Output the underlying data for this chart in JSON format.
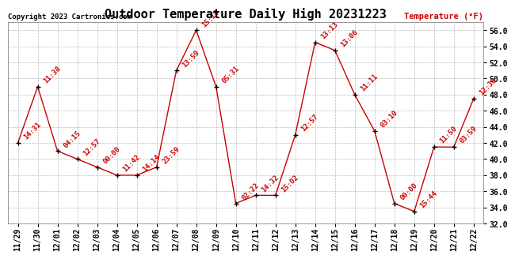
{
  "title": "Outdoor Temperature Daily High 20231223",
  "copyright": "Copyright 2023 Cartronics.com",
  "ylabel": "Temperature (°F)",
  "dates": [
    "11/29",
    "11/30",
    "12/01",
    "12/02",
    "12/03",
    "12/04",
    "12/05",
    "12/06",
    "12/07",
    "12/08",
    "12/09",
    "12/10",
    "12/11",
    "12/12",
    "12/13",
    "12/14",
    "12/15",
    "12/16",
    "12/17",
    "12/18",
    "12/19",
    "12/20",
    "12/21",
    "12/22"
  ],
  "values": [
    42.0,
    49.0,
    41.0,
    40.0,
    39.0,
    38.0,
    38.0,
    39.0,
    51.0,
    56.0,
    49.0,
    34.5,
    35.5,
    35.5,
    43.0,
    54.5,
    53.5,
    48.0,
    43.5,
    34.5,
    33.5,
    41.5,
    41.5,
    47.5
  ],
  "labels": [
    "14:31",
    "11:38",
    "04:15",
    "12:57",
    "00:00",
    "11:42",
    "14:14",
    "23:59",
    "13:59",
    "15:15",
    "05:31",
    "02:22",
    "14:32",
    "15:02",
    "12:57",
    "13:13",
    "13:06",
    "11:11",
    "03:10",
    "00:00",
    "15:44",
    "11:50",
    "03:59",
    "12:38"
  ],
  "ylim_min": 32.0,
  "ylim_max": 57.0,
  "yticks": [
    32.0,
    34.0,
    36.0,
    38.0,
    40.0,
    42.0,
    44.0,
    46.0,
    48.0,
    50.0,
    52.0,
    54.0,
    56.0
  ],
  "line_color": "#cc0000",
  "marker_color": "#000000",
  "label_color": "#cc0000",
  "title_color": "#000000",
  "bg_color": "#ffffff",
  "grid_color": "#bbbbbb",
  "copyright_color": "#000000",
  "ylabel_color": "#cc0000",
  "title_fontsize": 11,
  "tick_fontsize": 7,
  "label_fontsize": 6.5
}
